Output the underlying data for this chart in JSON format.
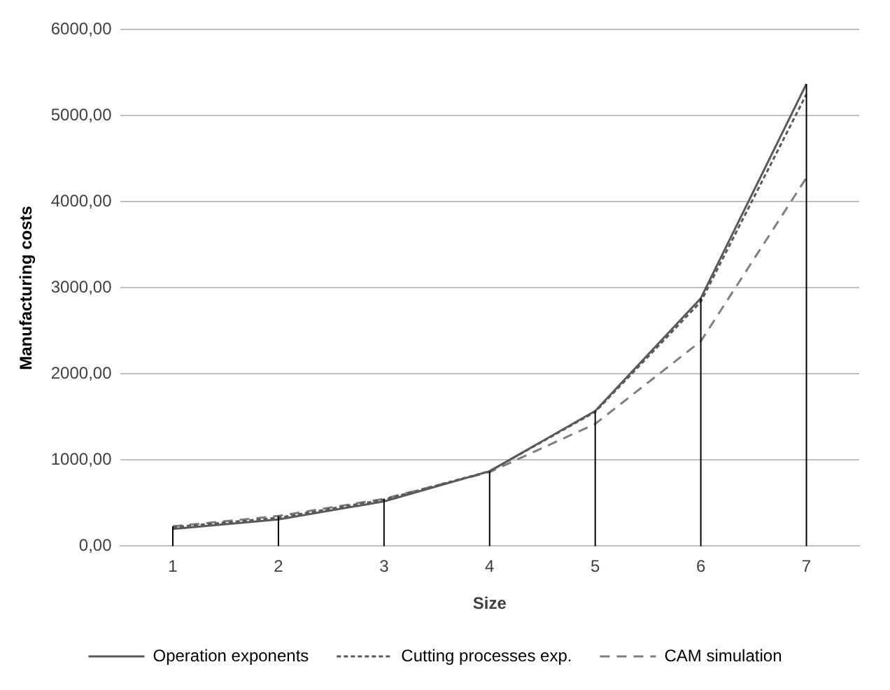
{
  "chart_data": {
    "type": "line",
    "xlabel": "Size",
    "ylabel": "Manufacturing costs",
    "categories": [
      "1",
      "2",
      "3",
      "4",
      "5",
      "6",
      "7"
    ],
    "series": [
      {
        "name": "Operation exponents",
        "color": "#595959",
        "line_style": "solid",
        "values": [
          200,
          310,
          520,
          870,
          1570,
          2880,
          5370
        ],
        "errors": [
          [
            0,
            230
          ],
          [
            0,
            350
          ],
          [
            0,
            550
          ],
          [
            0,
            870
          ],
          [
            0,
            1570
          ],
          [
            0,
            2880
          ],
          [
            0,
            5370
          ]
        ]
      },
      {
        "name": "Cutting processes exp.",
        "color": "#595959",
        "line_style": "dotted",
        "values": [
          220,
          330,
          540,
          870,
          1560,
          2840,
          5250
        ]
      },
      {
        "name": "CAM simulation",
        "color": "#7f7f7f",
        "line_style": "dashed",
        "values": [
          230,
          350,
          550,
          860,
          1420,
          2380,
          4280
        ]
      }
    ],
    "ylim": [
      0,
      6000
    ],
    "yticks": [
      {
        "value": 0,
        "label": "0,00"
      },
      {
        "value": 1000,
        "label": "1000,00"
      },
      {
        "value": 2000,
        "label": "2000,00"
      },
      {
        "value": 3000,
        "label": "3000,00"
      },
      {
        "value": 4000,
        "label": "4000,00"
      },
      {
        "value": 5000,
        "label": "5000,00"
      },
      {
        "value": 6000,
        "label": "6000,00"
      }
    ],
    "grid": "y",
    "legend": "bottom",
    "marker": "none"
  }
}
